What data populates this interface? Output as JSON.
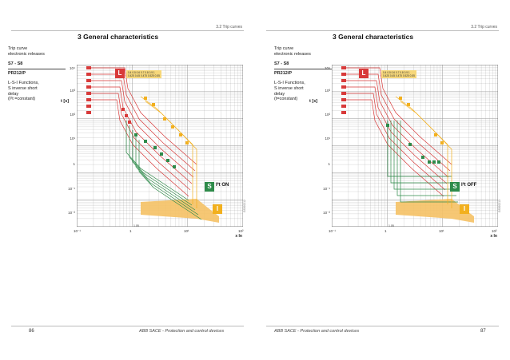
{
  "left_page": {
    "section_tag": "3.2 Trip curves",
    "chapter_title": "3 General characteristics",
    "side": {
      "line1": "Trip curve",
      "line2": "electronic releases",
      "model": "S7 - S8",
      "release": "PR212/P",
      "func1": "L-S-I Functions,",
      "func2": "S inverse short",
      "func3": "delay",
      "func4": "(I²t =constant)"
    },
    "t_label": "t [s]",
    "y_ticks": [
      "10⁴",
      "10³",
      "10²",
      "10¹",
      "1",
      "10⁻¹",
      "10⁻²"
    ],
    "x_ticks": [
      "10⁻¹",
      "1",
      "10¹",
      "10²"
    ],
    "x_mark": "1.05",
    "x_unit": "x In",
    "i2t_label": "I²t ON",
    "vertical_code": "GSIS0212",
    "page_number": "86",
    "footer": "ABB SACE - Protection and control devices"
  },
  "right_page": {
    "section_tag": "3.2 Trip curves",
    "chapter_title": "3 General characteristics",
    "side": {
      "line1": "Trip curve",
      "line2": "electronic releases",
      "model": "S7 - S8",
      "release": "PR212/P",
      "func1": "L-S-I Functions,",
      "func2": "S inverse short",
      "func3": "delay",
      "func4": "(t=constant)"
    },
    "t_label": "t [s]",
    "y_ticks": [
      "10⁴",
      "10³",
      "10²",
      "10¹",
      "1",
      "10⁻¹",
      "10⁻²"
    ],
    "x_ticks": [
      "10⁻¹",
      "1",
      "10¹",
      "10²"
    ],
    "x_mark": "1.05",
    "x_unit": "x In",
    "i2t_label": "I²t OFF",
    "vertical_code": "GSIS0213",
    "page_number": "87",
    "footer": "ABB SACE - Protection and control devices"
  },
  "badges": {
    "L": "L",
    "S": "S",
    "I": "I"
  },
  "colors": {
    "L": "#d83a3a",
    "S": "#2e8b4a",
    "I": "#f2b01e",
    "grid": "#9a9a9a",
    "band": "#f5c165"
  }
}
